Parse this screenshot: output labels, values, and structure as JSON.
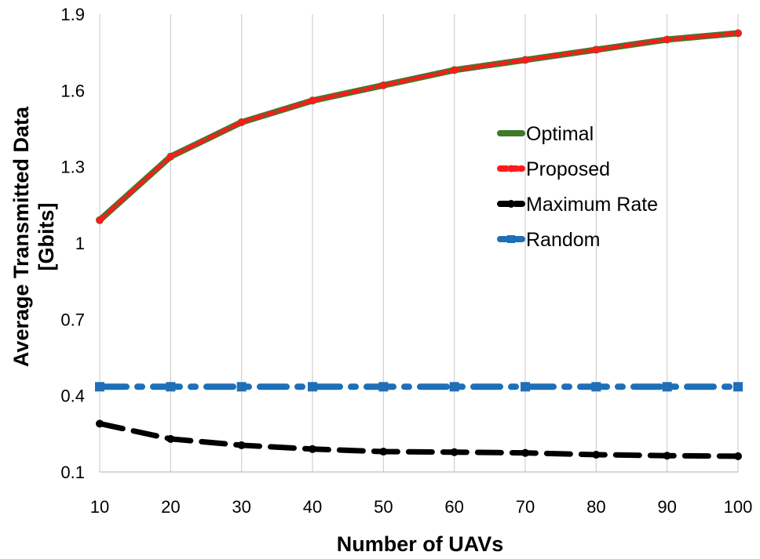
{
  "chart_data": {
    "type": "line",
    "title": "",
    "xlabel": "Number of UAVs",
    "ylabel_lines": [
      "Average Transmitted Data",
      "[Gbits]"
    ],
    "x": [
      10,
      20,
      30,
      40,
      50,
      60,
      70,
      80,
      90,
      100
    ],
    "x_ticks": [
      "10",
      "20",
      "30",
      "40",
      "50",
      "60",
      "70",
      "80",
      "90",
      "100"
    ],
    "xlim": [
      10,
      100
    ],
    "ylim": [
      0.1,
      1.9
    ],
    "y_ticks": [
      0.1,
      0.4,
      0.7,
      1.0,
      1.3,
      1.6,
      1.9
    ],
    "y_tick_labels": [
      "0.1",
      "0.4",
      "0.7",
      "1",
      "1.3",
      "1.6",
      "1.9"
    ],
    "grid": "vertical",
    "legend_position": "center-right",
    "series": [
      {
        "name": "Optimal",
        "color": "#3d7a2b",
        "style": "solid",
        "values": [
          1.09,
          1.34,
          1.475,
          1.56,
          1.62,
          1.68,
          1.72,
          1.76,
          1.8,
          1.825
        ]
      },
      {
        "name": "Proposed",
        "color": "#ff1a1a",
        "style": "dash",
        "values": [
          1.09,
          1.34,
          1.475,
          1.56,
          1.62,
          1.68,
          1.72,
          1.76,
          1.8,
          1.825
        ]
      },
      {
        "name": "Maximum Rate",
        "color": "#000000",
        "style": "long-dash",
        "values": [
          0.29,
          0.23,
          0.205,
          0.19,
          0.18,
          0.178,
          0.175,
          0.168,
          0.164,
          0.162
        ]
      },
      {
        "name": "Random",
        "color": "#1f6fb8",
        "style": "dash-dot",
        "values": [
          0.435,
          0.435,
          0.435,
          0.435,
          0.435,
          0.435,
          0.435,
          0.435,
          0.435,
          0.435
        ]
      }
    ]
  }
}
